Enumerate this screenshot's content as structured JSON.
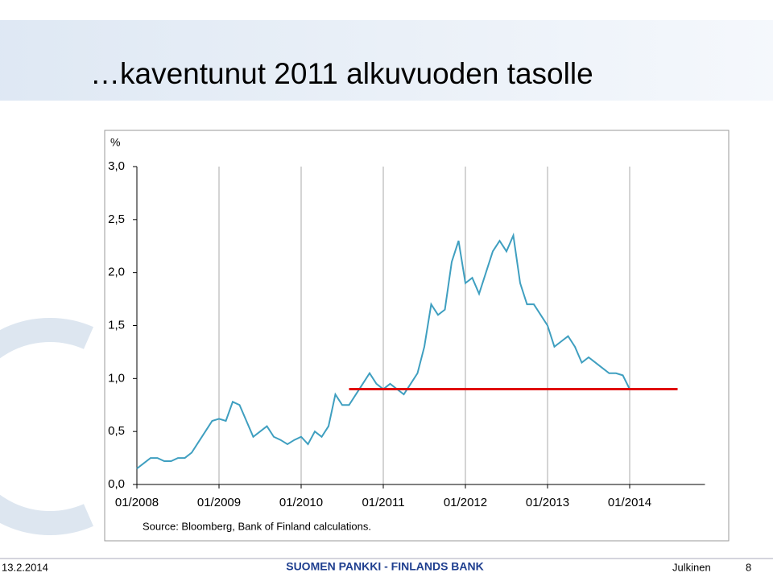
{
  "chart_data": {
    "type": "line",
    "title": "…kaventunut 2011 alkuvuoden tasolle",
    "ylabel": "%",
    "source": "Source: Bloomberg, Bank of Finland calculations.",
    "x": [
      "2008-01",
      "2008-02",
      "2008-03",
      "2008-04",
      "2008-05",
      "2008-06",
      "2008-07",
      "2008-08",
      "2008-09",
      "2008-10",
      "2008-11",
      "2008-12",
      "2009-01",
      "2009-02",
      "2009-03",
      "2009-04",
      "2009-05",
      "2009-06",
      "2009-07",
      "2009-08",
      "2009-09",
      "2009-10",
      "2009-11",
      "2009-12",
      "2010-01",
      "2010-02",
      "2010-03",
      "2010-04",
      "2010-05",
      "2010-06",
      "2010-07",
      "2010-08",
      "2010-09",
      "2010-10",
      "2010-11",
      "2010-12",
      "2011-01",
      "2011-02",
      "2011-03",
      "2011-04",
      "2011-05",
      "2011-06",
      "2011-07",
      "2011-08",
      "2011-09",
      "2011-10",
      "2011-11",
      "2011-12",
      "2012-01",
      "2012-02",
      "2012-03",
      "2012-04",
      "2012-05",
      "2012-06",
      "2012-07",
      "2012-08",
      "2012-09",
      "2012-10",
      "2012-11",
      "2012-12",
      "2013-01",
      "2013-02",
      "2013-03",
      "2013-04",
      "2013-05",
      "2013-06",
      "2013-07",
      "2013-08",
      "2013-09",
      "2013-10",
      "2013-11",
      "2013-12",
      "2014-01"
    ],
    "series": [
      {
        "color": "#3f9fc0",
        "values": [
          0.15,
          0.2,
          0.25,
          0.25,
          0.22,
          0.22,
          0.25,
          0.25,
          0.3,
          0.4,
          0.5,
          0.6,
          0.62,
          0.6,
          0.78,
          0.75,
          0.6,
          0.45,
          0.5,
          0.55,
          0.45,
          0.42,
          0.38,
          0.42,
          0.45,
          0.38,
          0.5,
          0.45,
          0.55,
          0.85,
          0.75,
          0.75,
          0.85,
          0.95,
          1.05,
          0.95,
          0.9,
          0.95,
          0.9,
          0.85,
          0.95,
          1.05,
          1.3,
          1.7,
          1.6,
          1.65,
          2.1,
          2.3,
          1.9,
          1.95,
          1.8,
          2.0,
          2.2,
          2.3,
          2.2,
          2.35,
          1.9,
          1.7,
          1.7,
          1.6,
          1.5,
          1.3,
          1.35,
          1.4,
          1.3,
          1.15,
          1.2,
          1.15,
          1.1,
          1.05,
          1.05,
          1.03,
          0.9
        ]
      }
    ],
    "reference_line": {
      "value": 0.9,
      "x": [
        "2010-08",
        "2014-08"
      ],
      "color": "#e00000"
    },
    "xlim": [
      "2008-01",
      "2014-12"
    ],
    "xticks": [
      {
        "value": "2008-01",
        "label": "01/2008"
      },
      {
        "value": "2009-01",
        "label": "01/2009"
      },
      {
        "value": "2010-01",
        "label": "01/2010"
      },
      {
        "value": "2011-01",
        "label": "01/2011"
      },
      {
        "value": "2012-01",
        "label": "01/2012"
      },
      {
        "value": "2013-01",
        "label": "01/2013"
      },
      {
        "value": "2014-01",
        "label": "01/2014"
      }
    ],
    "ylim": [
      0,
      3
    ],
    "yticks": [
      {
        "value": 0,
        "label": "0,0"
      },
      {
        "value": 0.5,
        "label": "0,5"
      },
      {
        "value": 1,
        "label": "1,0"
      },
      {
        "value": 1.5,
        "label": "1,5"
      },
      {
        "value": 2,
        "label": "2,0"
      },
      {
        "value": 2.5,
        "label": "2,5"
      },
      {
        "value": 3,
        "label": "3,0"
      }
    ],
    "grid": true
  },
  "footer": {
    "date": "13.2.2014",
    "org": "SUOMEN PANKKI - FINLANDS BANK",
    "class": "Julkinen",
    "page": "8"
  }
}
